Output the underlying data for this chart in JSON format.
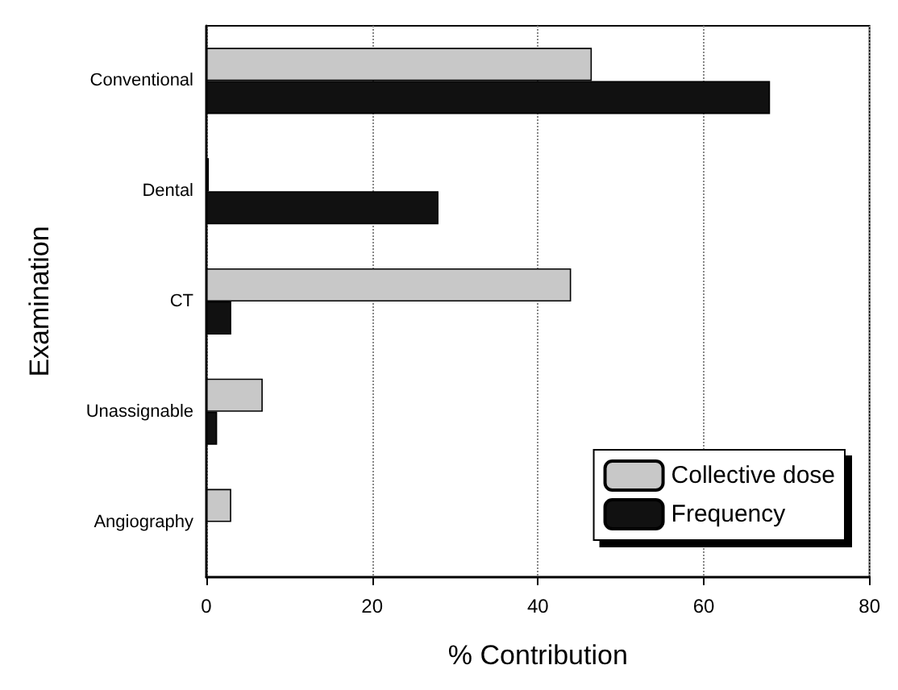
{
  "chart_data": {
    "type": "bar",
    "orientation": "horizontal",
    "xlabel": "% Contribution",
    "ylabel": "Examination",
    "categories": [
      "Conventional",
      "Dental",
      "CT",
      "Unassignable",
      "Angiography"
    ],
    "series": [
      {
        "name": "Collective dose",
        "color": "#c8c8c8",
        "values": [
          46.5,
          0.3,
          44,
          6.8,
          3
        ]
      },
      {
        "name": "Frequency",
        "color": "#111111",
        "values": [
          68,
          28,
          3,
          1.3,
          null
        ]
      }
    ],
    "xlim": [
      0,
      80
    ],
    "xticks": [
      0,
      20,
      40,
      60,
      80
    ],
    "grid": "x",
    "legend": "bottom right"
  }
}
